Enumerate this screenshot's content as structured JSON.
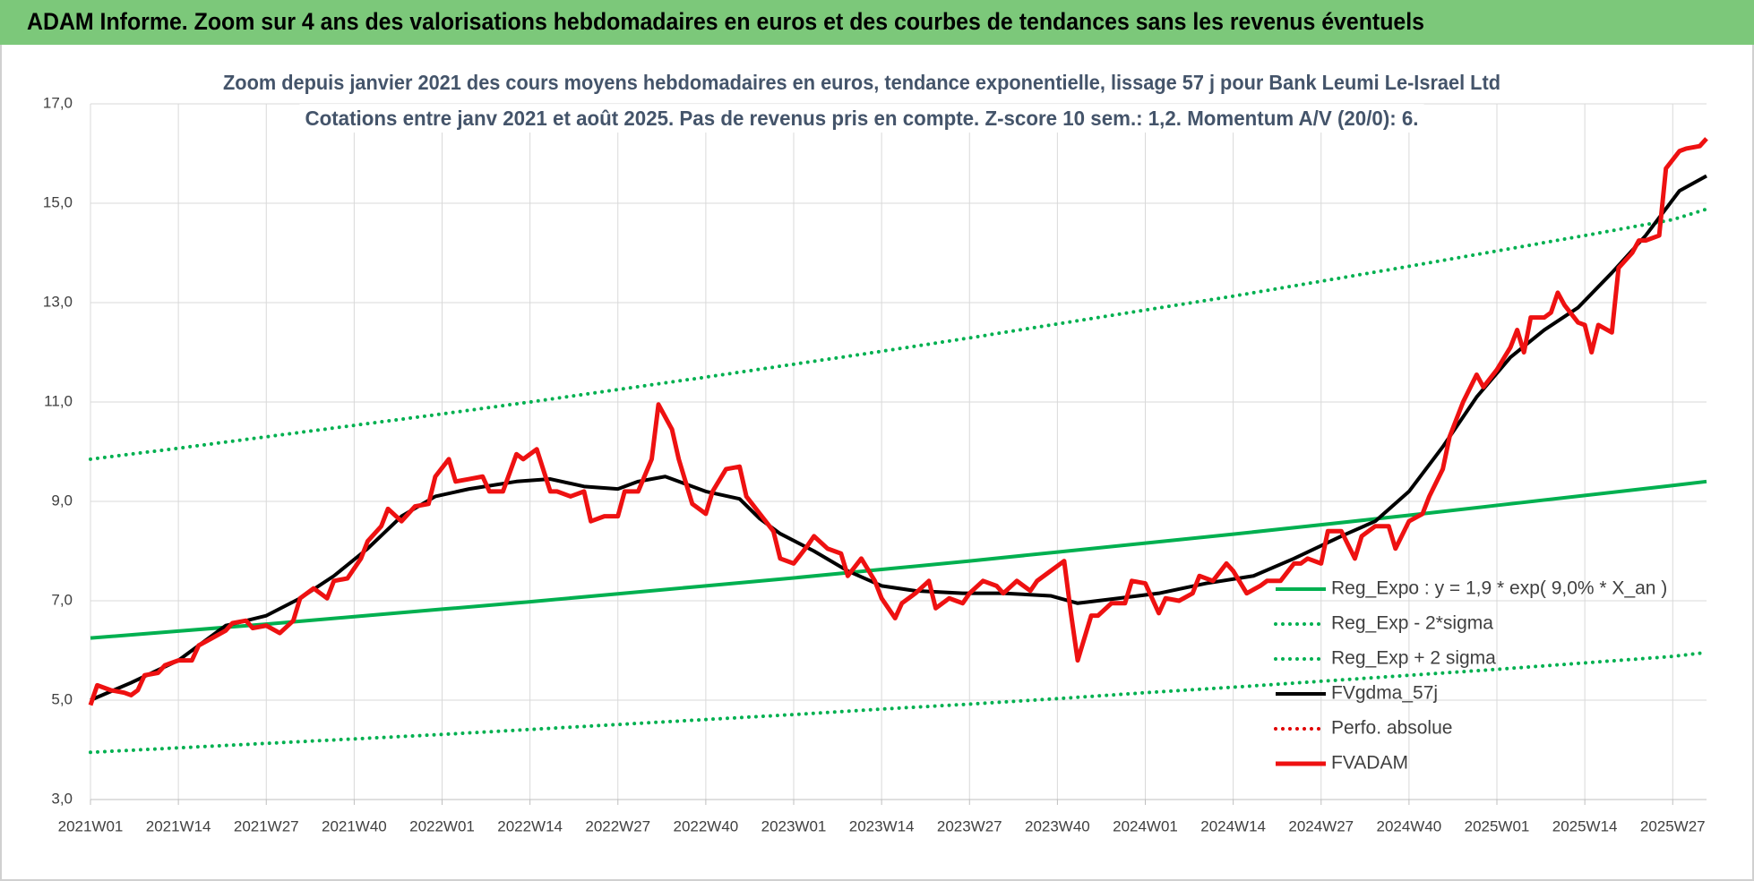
{
  "chart_data": {
    "type": "line",
    "header": "ADAM Informe. Zoom sur 4 ans des valorisations hebdomadaires en euros et des courbes de tendances sans les revenus éventuels",
    "title": "Zoom depuis janvier 2021 des cours moyens hebdomadaires en euros, tendance exponentielle, lissage 57 j pour Bank Leumi Le-Israel Ltd",
    "subtitle": "Cotations entre janv 2021 et août 2025.  Pas de revenus pris en compte. Z-score 10 sem.: 1,2. Momentum A/V (20/0): 6.",
    "xlim": [
      0,
      239
    ],
    "xticks": [
      {
        "value": 0,
        "label": "2021W01"
      },
      {
        "value": 13,
        "label": "2021W14"
      },
      {
        "value": 26,
        "label": "2021W27"
      },
      {
        "value": 39,
        "label": "2021W40"
      },
      {
        "value": 52,
        "label": "2022W01"
      },
      {
        "value": 65,
        "label": "2022W14"
      },
      {
        "value": 78,
        "label": "2022W27"
      },
      {
        "value": 91,
        "label": "2022W40"
      },
      {
        "value": 104,
        "label": "2023W01"
      },
      {
        "value": 117,
        "label": "2023W14"
      },
      {
        "value": 130,
        "label": "2023W27"
      },
      {
        "value": 143,
        "label": "2023W40"
      },
      {
        "value": 156,
        "label": "2024W01"
      },
      {
        "value": 169,
        "label": "2024W14"
      },
      {
        "value": 182,
        "label": "2024W27"
      },
      {
        "value": 195,
        "label": "2024W40"
      },
      {
        "value": 208,
        "label": "2025W01"
      },
      {
        "value": 221,
        "label": "2025W14"
      },
      {
        "value": 234,
        "label": "2025W27"
      }
    ],
    "ylim": [
      3,
      17
    ],
    "yticks": [
      {
        "value": 3,
        "label": "3,0"
      },
      {
        "value": 5,
        "label": "5,0"
      },
      {
        "value": 7,
        "label": "7,0"
      },
      {
        "value": 9,
        "label": "9,0"
      },
      {
        "value": 11,
        "label": "11,0"
      },
      {
        "value": 13,
        "label": "13,0"
      },
      {
        "value": 15,
        "label": "15,0"
      },
      {
        "value": 17,
        "label": "17,0"
      }
    ],
    "grid": true,
    "legend": "lower right",
    "series": [
      {
        "name": "Reg_Expo : y = 1,9 * exp( 9,0% *  X_an )",
        "color": "#00b050",
        "style": "solid",
        "x": [
          0,
          13,
          26,
          39,
          52,
          65,
          78,
          91,
          104,
          117,
          130,
          143,
          156,
          169,
          182,
          195,
          208,
          221,
          234,
          239
        ],
        "values": [
          6.25,
          6.39,
          6.53,
          6.68,
          6.83,
          6.98,
          7.14,
          7.3,
          7.46,
          7.63,
          7.8,
          7.98,
          8.16,
          8.34,
          8.53,
          8.72,
          8.92,
          9.12,
          9.32,
          9.4
        ]
      },
      {
        "name": "Reg_Exp - 2*sigma",
        "color": "#00b050",
        "style": "dotted",
        "x": [
          0,
          13,
          26,
          39,
          52,
          65,
          78,
          91,
          104,
          117,
          130,
          143,
          156,
          169,
          182,
          195,
          208,
          221,
          234,
          239
        ],
        "values": [
          3.95,
          4.04,
          4.13,
          4.22,
          4.31,
          4.41,
          4.51,
          4.61,
          4.71,
          4.82,
          4.92,
          5.03,
          5.15,
          5.26,
          5.38,
          5.5,
          5.62,
          5.75,
          5.88,
          5.96
        ]
      },
      {
        "name": "Reg_Exp + 2 sigma",
        "color": "#00b050",
        "style": "dotted",
        "x": [
          0,
          13,
          26,
          39,
          52,
          65,
          78,
          91,
          104,
          117,
          130,
          143,
          156,
          169,
          182,
          195,
          208,
          221,
          234,
          239
        ],
        "values": [
          9.85,
          10.07,
          10.3,
          10.53,
          10.76,
          11.0,
          11.25,
          11.5,
          11.76,
          12.02,
          12.29,
          12.57,
          12.85,
          13.13,
          13.43,
          13.73,
          14.04,
          14.35,
          14.67,
          14.88
        ]
      },
      {
        "name": "FVgdma_57j",
        "color": "#000000",
        "style": "solid",
        "x": [
          0,
          6,
          13,
          20,
          26,
          31,
          36,
          41,
          46,
          51,
          56,
          63,
          68,
          73,
          78,
          81,
          85,
          87,
          91,
          96,
          99,
          102,
          107,
          112,
          117,
          122,
          129,
          135,
          142,
          146,
          152,
          158,
          165,
          172,
          178,
          185,
          190,
          195,
          200,
          205,
          210,
          215,
          220,
          225,
          230,
          235,
          239
        ],
        "values": [
          5.0,
          5.35,
          5.8,
          6.5,
          6.7,
          7.05,
          7.5,
          8.05,
          8.7,
          9.1,
          9.25,
          9.4,
          9.45,
          9.3,
          9.25,
          9.4,
          9.5,
          9.4,
          9.2,
          9.05,
          8.65,
          8.35,
          8.0,
          7.6,
          7.3,
          7.2,
          7.15,
          7.15,
          7.1,
          6.95,
          7.05,
          7.15,
          7.35,
          7.5,
          7.85,
          8.3,
          8.6,
          9.2,
          10.1,
          11.1,
          11.9,
          12.45,
          12.9,
          13.6,
          14.35,
          15.25,
          15.55
        ]
      },
      {
        "name": "Perfo. absolue",
        "color": "#e00000",
        "style": "dotted",
        "x": [],
        "values": []
      },
      {
        "name": "FVADAM",
        "color": "#ee1111",
        "style": "solid",
        "x": [
          0,
          1,
          2,
          3,
          5,
          6,
          7,
          8,
          10,
          11,
          13,
          15,
          16,
          18,
          20,
          21,
          23,
          24,
          26,
          28,
          30,
          31,
          33,
          35,
          36,
          38,
          40,
          41,
          43,
          44,
          46,
          48,
          50,
          51,
          53,
          54,
          56,
          58,
          59,
          61,
          63,
          64,
          66,
          68,
          69,
          71,
          73,
          74,
          76,
          78,
          79,
          81,
          83,
          84,
          86,
          87,
          89,
          91,
          92,
          94,
          96,
          97,
          99,
          101,
          102,
          104,
          106,
          107,
          109,
          111,
          112,
          114,
          116,
          117,
          119,
          120,
          122,
          124,
          125,
          127,
          129,
          130,
          132,
          134,
          135,
          137,
          139,
          140,
          142,
          144,
          145,
          146,
          148,
          149,
          151,
          153,
          154,
          156,
          158,
          159,
          161,
          163,
          164,
          166,
          168,
          169,
          171,
          173,
          174,
          176,
          178,
          179,
          180,
          182,
          183,
          185,
          187,
          188,
          190,
          192,
          193,
          195,
          197,
          198,
          200,
          201,
          203,
          205,
          206,
          208,
          210,
          211,
          212,
          213,
          215,
          216,
          217,
          218,
          220,
          221,
          222,
          223,
          225,
          226,
          228,
          229,
          230,
          232,
          233,
          235,
          236,
          238,
          239
        ],
        "values": [
          4.9,
          5.3,
          5.25,
          5.2,
          5.15,
          5.1,
          5.2,
          5.5,
          5.55,
          5.7,
          5.8,
          5.8,
          6.1,
          6.25,
          6.4,
          6.55,
          6.6,
          6.45,
          6.5,
          6.35,
          6.6,
          7.05,
          7.25,
          7.05,
          7.4,
          7.45,
          7.85,
          8.2,
          8.5,
          8.85,
          8.6,
          8.9,
          8.95,
          9.5,
          9.85,
          9.4,
          9.45,
          9.5,
          9.2,
          9.2,
          9.95,
          9.85,
          10.05,
          9.2,
          9.2,
          9.1,
          9.2,
          8.6,
          8.7,
          8.7,
          9.2,
          9.2,
          9.85,
          10.95,
          10.45,
          9.85,
          8.95,
          8.75,
          9.2,
          9.65,
          9.7,
          9.1,
          8.75,
          8.4,
          7.85,
          7.75,
          8.1,
          8.3,
          8.05,
          7.95,
          7.5,
          7.85,
          7.4,
          7.05,
          6.65,
          6.95,
          7.15,
          7.4,
          6.85,
          7.05,
          6.95,
          7.15,
          7.4,
          7.3,
          7.15,
          7.4,
          7.2,
          7.4,
          7.6,
          7.8,
          6.75,
          5.8,
          6.7,
          6.7,
          6.95,
          6.95,
          7.4,
          7.35,
          6.75,
          7.05,
          7.0,
          7.15,
          7.5,
          7.4,
          7.75,
          7.6,
          7.15,
          7.3,
          7.4,
          7.4,
          7.75,
          7.75,
          7.85,
          7.75,
          8.4,
          8.4,
          7.85,
          8.3,
          8.5,
          8.5,
          8.05,
          8.6,
          8.75,
          9.1,
          9.65,
          10.3,
          11.0,
          11.55,
          11.3,
          11.65,
          12.1,
          12.45,
          12.0,
          12.7,
          12.7,
          12.8,
          13.2,
          12.95,
          12.6,
          12.55,
          12.0,
          12.55,
          12.4,
          13.7,
          14.0,
          14.25,
          14.25,
          14.35,
          15.7,
          16.05,
          16.1,
          16.15,
          16.3
        ]
      }
    ]
  }
}
